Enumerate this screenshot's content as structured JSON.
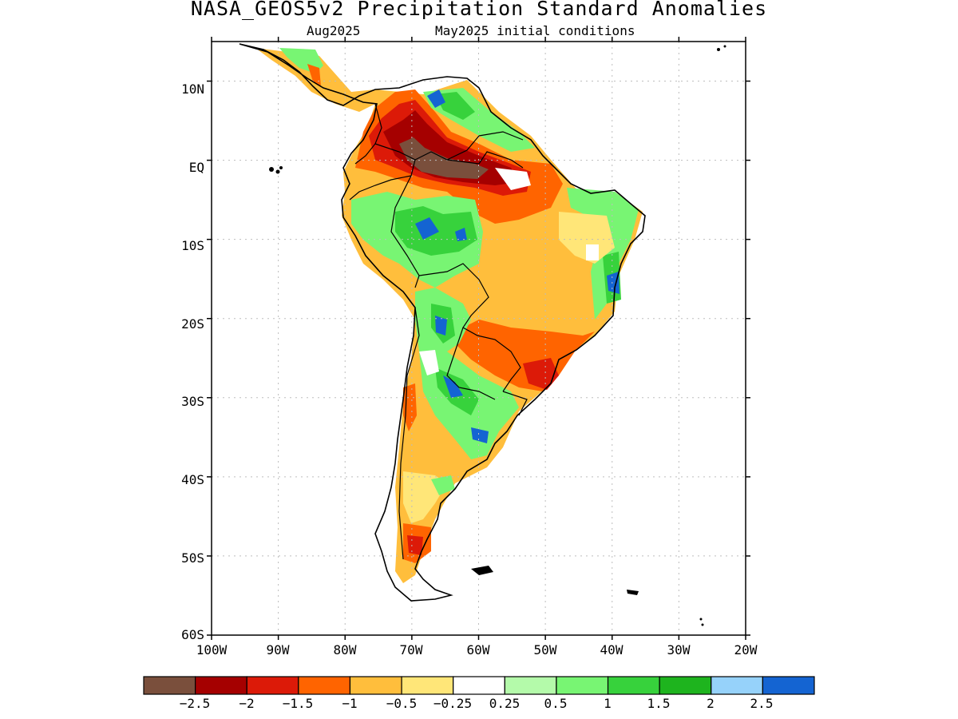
{
  "title": "NASA_GEOS5v2 Precipitation Standard Anomalies",
  "subtitle_left": "Aug2025",
  "subtitle_right": "May2025 initial conditions",
  "map": {
    "lat_labels": [
      "10N",
      "EQ",
      "10S",
      "20S",
      "30S",
      "40S",
      "50S",
      "60S"
    ],
    "lon_labels": [
      "100W",
      "90W",
      "80W",
      "70W",
      "60W",
      "50W",
      "40W",
      "30W",
      "20W"
    ],
    "lat_range": [
      -60,
      15
    ],
    "lon_range": [
      -100,
      -20
    ],
    "grid": "dotted"
  },
  "colorbar": {
    "colors": [
      "#7a4f3c",
      "#a50000",
      "#dc1a08",
      "#ff6400",
      "#ffbe3c",
      "#ffe678",
      "#ffffff",
      "#b4faaa",
      "#78f573",
      "#37d23c",
      "#1eb41e",
      "#96d2fa",
      "#1464d2"
    ],
    "labels": [
      "-2.5",
      "-2",
      "-1.5",
      "-1",
      "-0.5",
      "-0.25",
      "0.25",
      "0.5",
      "1",
      "1.5",
      "2",
      "2.5"
    ]
  }
}
